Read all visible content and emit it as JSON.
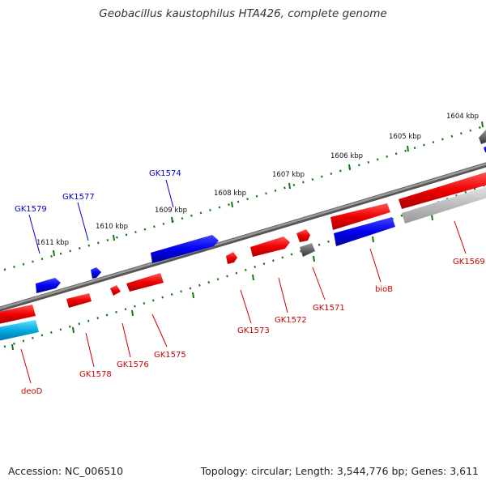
{
  "title": "Geobacillus kaustophilus HTA426, complete genome",
  "footer": {
    "accession": "Accession: NC_006510",
    "summary": "Topology: circular; Length: 3,544,776 bp; Genes: 3,611"
  },
  "colors": {
    "forward": "#ff0000",
    "reverse": "#0000ee",
    "other": "#666666",
    "pseudo": "#bbbbbb",
    "rrna": "#00aadd",
    "tick": "#117711",
    "backbone": "#777777"
  },
  "scale_ticks": [
    {
      "label": "1604 kbp"
    },
    {
      "label": "1605 kbp"
    },
    {
      "label": "1606 kbp"
    },
    {
      "label": "1607 kbp"
    },
    {
      "label": "1608 kbp"
    },
    {
      "label": "1609 kbp"
    },
    {
      "label": "1610 kbp"
    },
    {
      "label": "1611 kbp"
    }
  ],
  "gene_labels": [
    {
      "text": "GK1574",
      "strand": "reverse"
    },
    {
      "text": "GK1577",
      "strand": "reverse"
    },
    {
      "text": "GK1579",
      "strand": "reverse"
    },
    {
      "text": "GK1569",
      "strand": "forward"
    },
    {
      "text": "bioB",
      "strand": "forward"
    },
    {
      "text": "GK1571",
      "strand": "forward"
    },
    {
      "text": "GK1572",
      "strand": "forward"
    },
    {
      "text": "GK1573",
      "strand": "forward"
    },
    {
      "text": "GK1575",
      "strand": "forward"
    },
    {
      "text": "GK1576",
      "strand": "forward"
    },
    {
      "text": "GK1578",
      "strand": "forward"
    },
    {
      "text": "deoD",
      "strand": "forward"
    }
  ]
}
